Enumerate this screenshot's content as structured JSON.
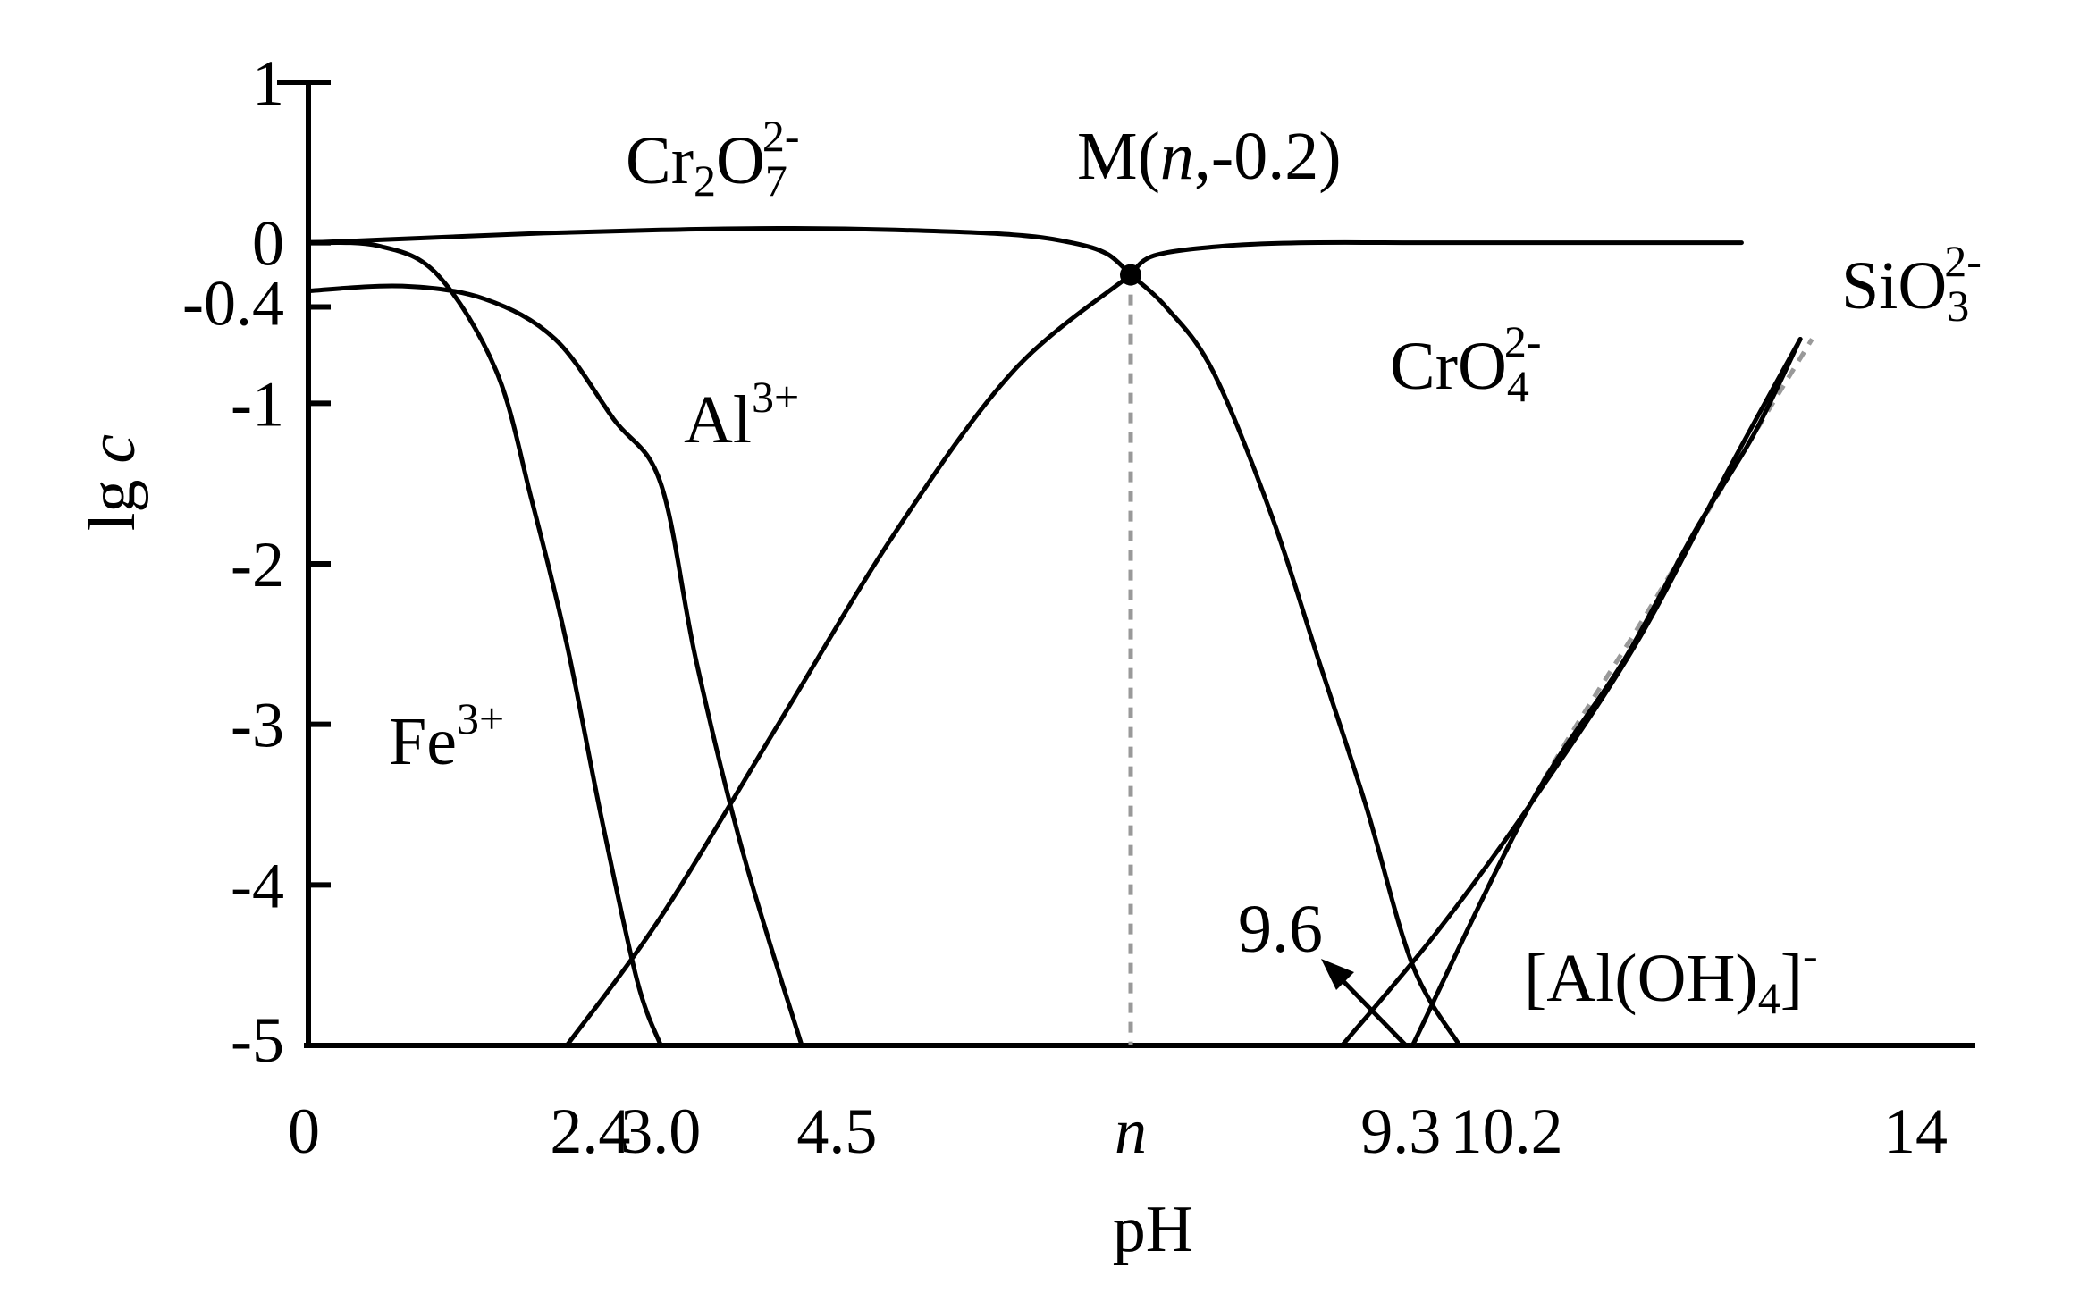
{
  "chart_data": {
    "type": "line",
    "xlabel": "pH",
    "ylabel_main": "lg",
    "ylabel_var": "c",
    "xlim": [
      0,
      14
    ],
    "ylim": [
      -5,
      1
    ],
    "grid": false,
    "x_ticks": [
      {
        "x": 0,
        "label": "0"
      },
      {
        "x": 2.4,
        "label": "2.4"
      },
      {
        "x": 3.0,
        "label": "3.0"
      },
      {
        "x": 4.5,
        "label": "4.5"
      },
      {
        "x": 7.0,
        "label": "n",
        "italic": true
      },
      {
        "x": 9.3,
        "label": "9.3"
      },
      {
        "x": 10.2,
        "label": "10.2"
      },
      {
        "x": 14,
        "label": "14"
      }
    ],
    "y_ticks": [
      {
        "y": 1,
        "label": "1"
      },
      {
        "y": 0,
        "label": "0"
      },
      {
        "y": -0.4,
        "label": "-0.4"
      },
      {
        "y": -1,
        "label": "-1"
      },
      {
        "y": -2,
        "label": "-2"
      },
      {
        "y": -3,
        "label": "-3"
      },
      {
        "y": -4,
        "label": "-4"
      },
      {
        "y": -5,
        "label": "-5"
      }
    ],
    "series": [
      {
        "name": "Cr2O7 2-",
        "points": [
          [
            0,
            0
          ],
          [
            1,
            0.03
          ],
          [
            2,
            0.06
          ],
          [
            3,
            0.08
          ],
          [
            4,
            0.09
          ],
          [
            5,
            0.08
          ],
          [
            6,
            0.05
          ],
          [
            6.5,
            0.0
          ],
          [
            6.8,
            -0.07
          ],
          [
            7.0,
            -0.2
          ]
        ]
      },
      {
        "name": "CrO4 2-",
        "points": [
          [
            7.0,
            -0.2
          ],
          [
            7.2,
            -0.08
          ],
          [
            7.8,
            -0.02
          ],
          [
            8.5,
            0.0
          ],
          [
            9.5,
            0.0
          ],
          [
            10.5,
            0.0
          ],
          [
            11.5,
            0.0
          ],
          [
            12.2,
            0.0
          ]
        ]
      },
      {
        "name": "Fe3+",
        "points": [
          [
            0,
            0
          ],
          [
            0.6,
            -0.02
          ],
          [
            1.1,
            -0.2
          ],
          [
            1.6,
            -0.8
          ],
          [
            1.9,
            -1.6
          ],
          [
            2.2,
            -2.5
          ],
          [
            2.5,
            -3.6
          ],
          [
            2.8,
            -4.6
          ],
          [
            3.0,
            -5
          ]
        ]
      },
      {
        "name": "Al3+",
        "points": [
          [
            0,
            -0.3
          ],
          [
            0.8,
            -0.27
          ],
          [
            1.5,
            -0.35
          ],
          [
            2.1,
            -0.6
          ],
          [
            2.6,
            -1.1
          ],
          [
            3.0,
            -1.5
          ],
          [
            3.3,
            -2.6
          ],
          [
            3.7,
            -3.8
          ],
          [
            4.2,
            -5
          ]
        ]
      },
      {
        "name": "[Al(OH)4]-",
        "points": [
          [
            2.2,
            -5
          ],
          [
            3.0,
            -4.2
          ],
          [
            4.0,
            -3.0
          ],
          [
            5.0,
            -1.8
          ],
          [
            6.0,
            -0.8
          ],
          [
            7.0,
            -0.2
          ]
        ]
      },
      {
        "name": "CrO4 2- right",
        "points": [
          [
            7.0,
            -0.2
          ],
          [
            7.3,
            -0.4
          ],
          [
            7.7,
            -0.8
          ],
          [
            8.2,
            -1.7
          ],
          [
            8.6,
            -2.6
          ],
          [
            9.0,
            -3.5
          ],
          [
            9.4,
            -4.5
          ],
          [
            9.8,
            -5
          ]
        ]
      },
      {
        "name": "[Al(OH)4]- rising",
        "points": [
          [
            8.8,
            -5
          ],
          [
            9.6,
            -4.3
          ],
          [
            10.4,
            -3.5
          ],
          [
            11.3,
            -2.5
          ],
          [
            12.1,
            -1.4
          ],
          [
            12.7,
            -0.6
          ]
        ]
      },
      {
        "name": "SiO3 2-",
        "points": [
          [
            9.4,
            -5
          ],
          [
            10.4,
            -3.5
          ],
          [
            11.2,
            -2.6
          ],
          [
            11.8,
            -1.8
          ],
          [
            12.3,
            -1.2
          ],
          [
            12.7,
            -0.6
          ]
        ]
      }
    ],
    "dashed_lines": [
      {
        "points": [
          [
            7.0,
            -0.2
          ],
          [
            7.0,
            -5
          ]
        ]
      },
      {
        "points": [
          [
            9.4,
            -5
          ],
          [
            10.4,
            -3.5
          ],
          [
            11.4,
            -2.3
          ],
          [
            12.3,
            -1.2
          ],
          [
            12.8,
            -0.6
          ]
        ]
      }
    ],
    "point_M": {
      "x": 7.0,
      "y": -0.2,
      "label_prefix": "M(",
      "label_var": "n",
      "label_suffix": ",-0.2)"
    },
    "annotations": {
      "cr2o7": {
        "base": "Cr",
        "s1": "2",
        "mid": "O",
        "s2": "7",
        "sup": "2-"
      },
      "cro4": {
        "base": "CrO",
        "sub": "4",
        "sup": "2-"
      },
      "sio3": {
        "base": "SiO",
        "sub": "3",
        "sup": "2-"
      },
      "al3": {
        "base": "Al",
        "sup": "3+"
      },
      "fe3": {
        "base": "Fe",
        "sup": "3+"
      },
      "aloh4": {
        "pre": "[Al(OH)",
        "sub": "4",
        "post": "]",
        "sup": "-"
      },
      "arrow_label": "9.6"
    }
  }
}
